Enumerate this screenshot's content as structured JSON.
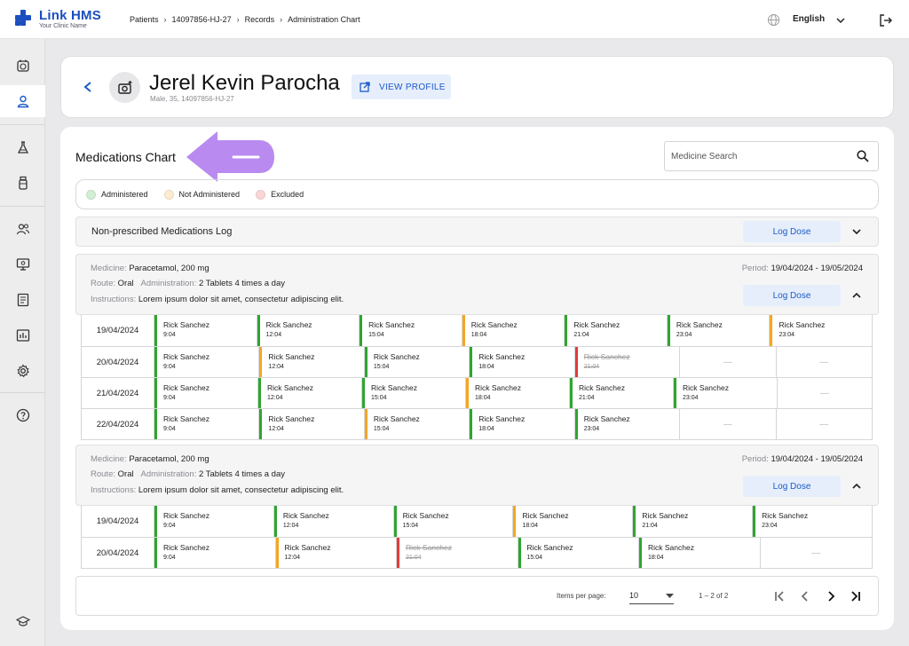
{
  "app": {
    "name": "Link HMS",
    "tagline": "Your Clinic Name"
  },
  "breadcrumb": [
    "Patients",
    "14097856-HJ-27",
    "Records",
    "Administration Chart"
  ],
  "language": "English",
  "colors": {
    "accent": "#1b5ac9",
    "administered": "#2fa52f",
    "not_administered": "#f5a623",
    "excluded": "#e33b3b",
    "arrow": "#b98bf0"
  },
  "sidebar": {
    "icons": [
      "calendar-icon",
      "user-icon",
      "flask-icon",
      "bottle-icon",
      "team-icon",
      "monitor-icon",
      "document-icon",
      "report-icon",
      "gear-icon",
      "help-icon",
      "graduation-cap-icon"
    ]
  },
  "patient": {
    "name": "Jerel Kevin Parocha",
    "meta": "Male, 35, 14097856-HJ-27",
    "view_profile": "VIEW PROFILE"
  },
  "chart": {
    "title": "Medications Chart",
    "search_placeholder": "Medicine Search"
  },
  "legend": [
    "Administered",
    "Not Administered",
    "Excluded"
  ],
  "nonprescribed": {
    "title": "Non-prescribed Medications Log",
    "button": "Log Dose"
  },
  "labels": {
    "medicine": "Medicine:",
    "route": "Route:",
    "administration": "Administration:",
    "instructions": "Instructions:",
    "period": "Period:",
    "log_dose": "Log Dose",
    "empty": "—"
  },
  "medications": [
    {
      "medicine": "Paracetamol, 200 mg",
      "route": "Oral",
      "administration": "2 Tablets 4 times a day",
      "instructions": "Lorem ipsum dolor sit amet, consectetur adipiscing elit.",
      "period": "19/04/2024 - 19/05/2024",
      "rows": [
        {
          "date": "19/04/2024",
          "cells": [
            [
              "Rick Sanchez",
              "9:04",
              "a"
            ],
            [
              "Rick Sanchez",
              "12:04",
              "a"
            ],
            [
              "Rick Sanchez",
              "15:04",
              "a"
            ],
            [
              "Rick Sanchez",
              "18:04",
              "n"
            ],
            [
              "Rick Sanchez",
              "21:04",
              "a"
            ],
            [
              "Rick Sanchez",
              "23:04",
              "a"
            ],
            [
              "Rick Sanchez",
              "23:04",
              "n"
            ]
          ]
        },
        {
          "date": "20/04/2024",
          "cells": [
            [
              "Rick Sanchez",
              "9:04",
              "a"
            ],
            [
              "Rick Sanchez",
              "12:04",
              "n"
            ],
            [
              "Rick Sanchez",
              "15:04",
              "a"
            ],
            [
              "Rick Sanchez",
              "18:04",
              "a"
            ],
            [
              "Rick Sanchez",
              "21:04",
              "e"
            ],
            null,
            null
          ]
        },
        {
          "date": "21/04/2024",
          "cells": [
            [
              "Rick Sanchez",
              "9:04",
              "a"
            ],
            [
              "Rick Sanchez",
              "12:04",
              "a"
            ],
            [
              "Rick Sanchez",
              "15:04",
              "a"
            ],
            [
              "Rick Sanchez",
              "18:04",
              "n"
            ],
            [
              "Rick Sanchez",
              "21:04",
              "a"
            ],
            [
              "Rick Sanchez",
              "23:04",
              "a"
            ],
            null
          ]
        },
        {
          "date": "22/04/2024",
          "cells": [
            [
              "Rick Sanchez",
              "9:04",
              "a"
            ],
            [
              "Rick Sanchez",
              "12:04",
              "a"
            ],
            [
              "Rick Sanchez",
              "15:04",
              "n"
            ],
            [
              "Rick Sanchez",
              "18:04",
              "a"
            ],
            [
              "Rick Sanchez",
              "23:04",
              "a"
            ],
            null,
            null
          ]
        }
      ]
    },
    {
      "medicine": "Paracetamol, 200 mg",
      "route": "Oral",
      "administration": "2 Tablets 4 times a day",
      "instructions": "Lorem ipsum dolor sit amet, consectetur adipiscing elit.",
      "period": "19/04/2024 - 19/05/2024",
      "rows": [
        {
          "date": "19/04/2024",
          "cells": [
            [
              "Rick Sanchez",
              "9:04",
              "a"
            ],
            [
              "Rick Sanchez",
              "12:04",
              "a"
            ],
            [
              "Rick Sanchez",
              "15:04",
              "a"
            ],
            [
              "Rick Sanchez",
              "18:04",
              "n"
            ],
            [
              "Rick Sanchez",
              "21:04",
              "a"
            ],
            [
              "Rick Sanchez",
              "23:04",
              "a"
            ]
          ]
        },
        {
          "date": "20/04/2024",
          "cells": [
            [
              "Rick Sanchez",
              "9:04",
              "a"
            ],
            [
              "Rick Sanchez",
              "12:04",
              "n"
            ],
            [
              "Rick Sanchez",
              "21:04",
              "e"
            ],
            [
              "Rick Sanchez",
              "15:04",
              "a"
            ],
            [
              "Rick Sanchez",
              "18:04",
              "a"
            ],
            null
          ]
        }
      ]
    }
  ],
  "pagination": {
    "items_per_page_label": "Items per page:",
    "items_per_page": "10",
    "range": "1 – 2 of 2"
  }
}
